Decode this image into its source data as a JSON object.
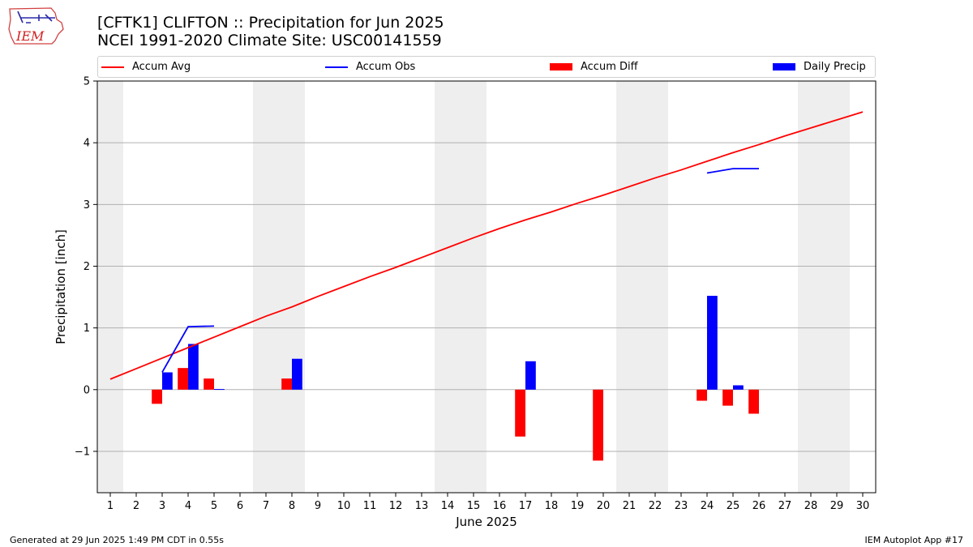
{
  "logo": {
    "text": "IEM"
  },
  "title": {
    "line1": "[CFTK1] CLIFTON :: Precipitation for Jun 2025",
    "line2": "NCEI 1991-2020 Climate Site: USC00141559"
  },
  "legend": {
    "items": [
      {
        "label": "Accum Avg",
        "kind": "line",
        "color": "#ff0000"
      },
      {
        "label": "Accum Obs",
        "kind": "line",
        "color": "#0000ff"
      },
      {
        "label": "Accum Diff",
        "kind": "box",
        "color": "#ff0000"
      },
      {
        "label": "Daily Precip",
        "kind": "box",
        "color": "#0000ff"
      }
    ]
  },
  "footer": {
    "left": "Generated at 29 Jun 2025 1:49 PM CDT in 0.55s",
    "right": "IEM Autoplot App #17"
  },
  "chart_data": {
    "type": "bar",
    "xlabel": "June 2025",
    "ylabel": "Precipitation [inch]",
    "xlim": [
      0.5,
      30.5
    ],
    "ylim": [
      -1.67,
      5
    ],
    "yticks": [
      -1,
      0,
      1,
      2,
      3,
      4,
      5
    ],
    "ytick_labels": [
      "−1",
      "0",
      "1",
      "2",
      "3",
      "4",
      "5"
    ],
    "days": [
      1,
      2,
      3,
      4,
      5,
      6,
      7,
      8,
      9,
      10,
      11,
      12,
      13,
      14,
      15,
      16,
      17,
      18,
      19,
      20,
      21,
      22,
      23,
      24,
      25,
      26,
      27,
      28,
      29,
      30
    ],
    "weekend_days": [
      1,
      7,
      8,
      14,
      15,
      21,
      22,
      28,
      29
    ],
    "grid": "y",
    "colors": {
      "avg": "#ff0000",
      "obs": "#0000ff",
      "weekend": "#eeeeee"
    },
    "accum_avg": [
      0.17,
      0.34,
      0.51,
      0.68,
      0.85,
      1.02,
      1.19,
      1.34,
      1.51,
      1.67,
      1.83,
      1.98,
      2.14,
      2.3,
      2.46,
      2.61,
      2.75,
      2.88,
      3.02,
      3.15,
      3.29,
      3.43,
      3.56,
      3.7,
      3.84,
      3.97,
      4.11,
      4.24,
      4.37,
      4.5
    ],
    "accum_obs_segments": [
      {
        "days": [
          3,
          4,
          5
        ],
        "values": [
          0.28,
          1.02,
          1.03
        ]
      },
      {
        "days": [
          24,
          25,
          26
        ],
        "values": [
          3.51,
          3.58,
          3.58
        ]
      }
    ],
    "accum_diff": [
      {
        "day": 3,
        "value": -0.23
      },
      {
        "day": 4,
        "value": 0.35
      },
      {
        "day": 5,
        "value": 0.18
      },
      {
        "day": 8,
        "value": 0.18
      },
      {
        "day": 17,
        "value": -0.76
      },
      {
        "day": 20,
        "value": -1.15
      },
      {
        "day": 24,
        "value": -0.18
      },
      {
        "day": 25,
        "value": -0.26
      },
      {
        "day": 26,
        "value": -0.39
      }
    ],
    "daily_precip": [
      {
        "day": 3,
        "value": 0.28
      },
      {
        "day": 4,
        "value": 0.74
      },
      {
        "day": 5,
        "value": 0.01
      },
      {
        "day": 8,
        "value": 0.5
      },
      {
        "day": 17,
        "value": 0.46
      },
      {
        "day": 24,
        "value": 1.52
      },
      {
        "day": 25,
        "value": 0.07
      }
    ]
  }
}
